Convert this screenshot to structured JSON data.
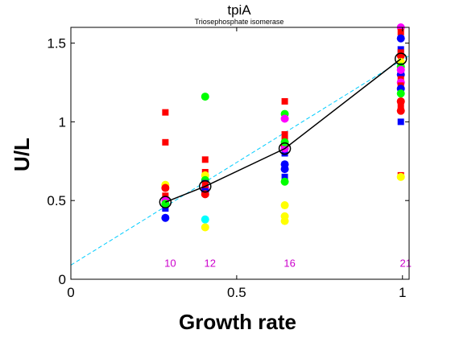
{
  "chart_data": {
    "type": "scatter",
    "title": "tpiA",
    "subtitle": "Triosephosphate isomerase",
    "xlabel": "Growth rate",
    "ylabel": "U/L",
    "xlim": [
      0,
      1.02
    ],
    "ylim": [
      0,
      1.6
    ],
    "xticks": [
      0,
      0.5,
      1
    ],
    "yticks": [
      0,
      0.5,
      1,
      1.5
    ],
    "xtick_labels": [
      "0",
      "0.5",
      "1"
    ],
    "ytick_labels": [
      "0",
      "0.5",
      "1",
      "1.5"
    ],
    "grid": false,
    "colors": {
      "mean_line": "#000000",
      "fit_line": "#00ccff",
      "count_labels": "#cc00cc"
    },
    "groups": [
      {
        "x": 0.285,
        "mean": 0.49,
        "count": "10",
        "points": [
          {
            "y": 1.06,
            "color": "#ff0000",
            "marker": "square"
          },
          {
            "y": 0.87,
            "color": "#ff0000",
            "marker": "square"
          },
          {
            "y": 0.6,
            "color": "#ffff00",
            "marker": "circle"
          },
          {
            "y": 0.58,
            "color": "#ff0000",
            "marker": "circle"
          },
          {
            "y": 0.53,
            "color": "#ff0000",
            "marker": "square"
          },
          {
            "y": 0.5,
            "color": "#ff00ff",
            "marker": "circle"
          },
          {
            "y": 0.47,
            "color": "#ff0000",
            "marker": "square"
          },
          {
            "y": 0.45,
            "color": "#0000ff",
            "marker": "square"
          },
          {
            "y": 0.39,
            "color": "#0000ff",
            "marker": "circle"
          },
          {
            "y": 0.48,
            "color": "#00ff00",
            "marker": "circle"
          }
        ]
      },
      {
        "x": 0.405,
        "mean": 0.59,
        "count": "12",
        "points": [
          {
            "y": 1.16,
            "color": "#00ff00",
            "marker": "circle"
          },
          {
            "y": 0.76,
            "color": "#ff0000",
            "marker": "square"
          },
          {
            "y": 0.68,
            "color": "#ff0000",
            "marker": "square"
          },
          {
            "y": 0.66,
            "color": "#ffff00",
            "marker": "circle"
          },
          {
            "y": 0.63,
            "color": "#00ff00",
            "marker": "circle"
          },
          {
            "y": 0.61,
            "color": "#0000ff",
            "marker": "square"
          },
          {
            "y": 0.58,
            "color": "#ff00ff",
            "marker": "circle"
          },
          {
            "y": 0.56,
            "color": "#0000ff",
            "marker": "circle"
          },
          {
            "y": 0.54,
            "color": "#ff0000",
            "marker": "circle"
          },
          {
            "y": 0.38,
            "color": "#00ffff",
            "marker": "circle"
          },
          {
            "y": 0.33,
            "color": "#ffff00",
            "marker": "circle"
          },
          {
            "y": 0.6,
            "color": "#ff0000",
            "marker": "square"
          }
        ]
      },
      {
        "x": 0.645,
        "mean": 0.83,
        "count": "16",
        "points": [
          {
            "y": 1.13,
            "color": "#ff0000",
            "marker": "square"
          },
          {
            "y": 1.05,
            "color": "#00ff00",
            "marker": "circle"
          },
          {
            "y": 1.02,
            "color": "#ff00ff",
            "marker": "circle"
          },
          {
            "y": 0.92,
            "color": "#ff0000",
            "marker": "square"
          },
          {
            "y": 0.88,
            "color": "#ff0000",
            "marker": "square"
          },
          {
            "y": 0.85,
            "color": "#ff0000",
            "marker": "circle"
          },
          {
            "y": 0.8,
            "color": "#0000ff",
            "marker": "square"
          },
          {
            "y": 0.73,
            "color": "#0000ff",
            "marker": "circle"
          },
          {
            "y": 0.7,
            "color": "#0000ff",
            "marker": "circle"
          },
          {
            "y": 0.65,
            "color": "#0000ff",
            "marker": "square"
          },
          {
            "y": 0.62,
            "color": "#00ff00",
            "marker": "circle"
          },
          {
            "y": 0.47,
            "color": "#ffff00",
            "marker": "circle"
          },
          {
            "y": 0.4,
            "color": "#ffff00",
            "marker": "circle"
          },
          {
            "y": 0.37,
            "color": "#ffff00",
            "marker": "circle"
          },
          {
            "y": 0.83,
            "color": "#ff00ff",
            "marker": "circle"
          },
          {
            "y": 0.87,
            "color": "#00ff00",
            "marker": "circle"
          }
        ]
      },
      {
        "x": 0.995,
        "mean": 1.4,
        "count": "21",
        "points": [
          {
            "y": 1.6,
            "color": "#ff00ff",
            "marker": "circle"
          },
          {
            "y": 1.57,
            "color": "#ff0000",
            "marker": "square"
          },
          {
            "y": 1.53,
            "color": "#0000ff",
            "marker": "circle"
          },
          {
            "y": 1.46,
            "color": "#0000ff",
            "marker": "square"
          },
          {
            "y": 1.42,
            "color": "#ff0000",
            "marker": "circle"
          },
          {
            "y": 1.38,
            "color": "#ffff00",
            "marker": "circle"
          },
          {
            "y": 1.35,
            "color": "#00ff00",
            "marker": "circle"
          },
          {
            "y": 1.3,
            "color": "#0000ff",
            "marker": "circle"
          },
          {
            "y": 1.27,
            "color": "#ff0000",
            "marker": "square"
          },
          {
            "y": 1.25,
            "color": "#ff00ff",
            "marker": "circle"
          },
          {
            "y": 1.23,
            "color": "#ff0000",
            "marker": "square"
          },
          {
            "y": 1.21,
            "color": "#0000ff",
            "marker": "circle"
          },
          {
            "y": 1.13,
            "color": "#ff0000",
            "marker": "circle"
          },
          {
            "y": 1.1,
            "color": "#ff0000",
            "marker": "square"
          },
          {
            "y": 1.07,
            "color": "#ff0000",
            "marker": "circle"
          },
          {
            "y": 1.0,
            "color": "#0000ff",
            "marker": "square"
          },
          {
            "y": 0.66,
            "color": "#ff0000",
            "marker": "square"
          },
          {
            "y": 0.65,
            "color": "#ffff00",
            "marker": "circle"
          },
          {
            "y": 1.44,
            "color": "#ff0000",
            "marker": "square"
          },
          {
            "y": 1.18,
            "color": "#00ff00",
            "marker": "circle"
          },
          {
            "y": 1.33,
            "color": "#ff00ff",
            "marker": "circle"
          }
        ]
      }
    ],
    "fit_line": {
      "x": [
        0,
        1.02
      ],
      "y": [
        0.09,
        1.42
      ]
    }
  }
}
